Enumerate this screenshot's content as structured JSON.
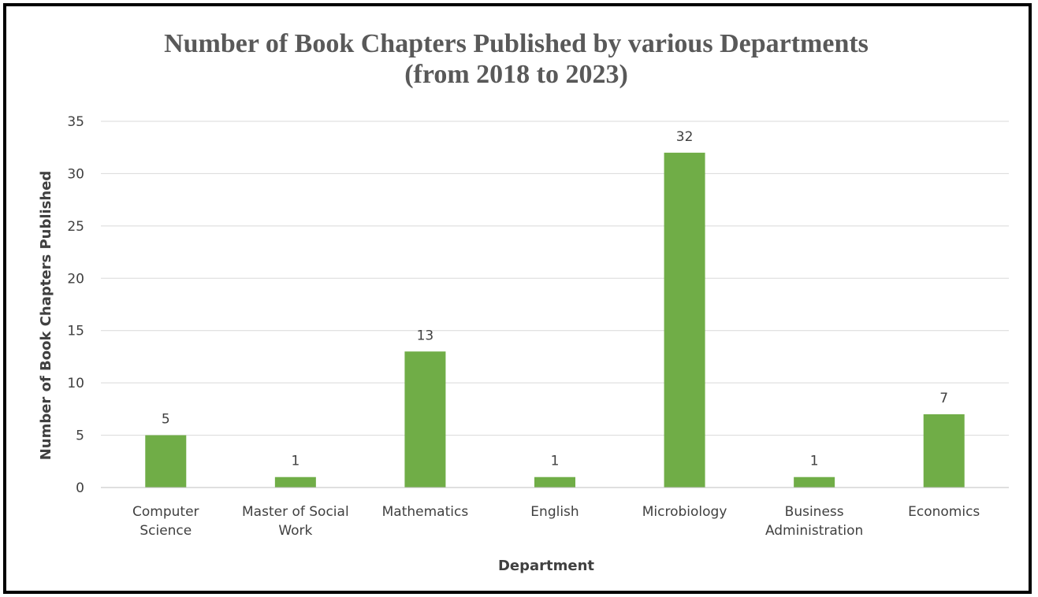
{
  "chart_data": {
    "type": "bar",
    "title_lines": [
      "Number of Book Chapters Published by various Departments",
      "(from 2018 to 2023)"
    ],
    "xlabel": "Department",
    "ylabel": "Number of Book Chapters Published",
    "categories": [
      [
        "Computer",
        "Science"
      ],
      [
        "Master of Social",
        "Work"
      ],
      [
        "Mathematics"
      ],
      [
        "English"
      ],
      [
        "Microbiology"
      ],
      [
        "Business",
        "Administration"
      ],
      [
        "Economics"
      ]
    ],
    "values": [
      5,
      1,
      13,
      1,
      32,
      1,
      7
    ],
    "ylim": [
      0,
      35
    ],
    "yticks": [
      0,
      5,
      10,
      15,
      20,
      25,
      30,
      35
    ],
    "grid": true,
    "data_labels": true,
    "legend": "none",
    "colors": {
      "bar": "#70AD47",
      "grid": "#D9D9D9",
      "axis": "#BFBFBF",
      "frame": "#000000",
      "title": "#595959",
      "text": "#404040"
    }
  }
}
